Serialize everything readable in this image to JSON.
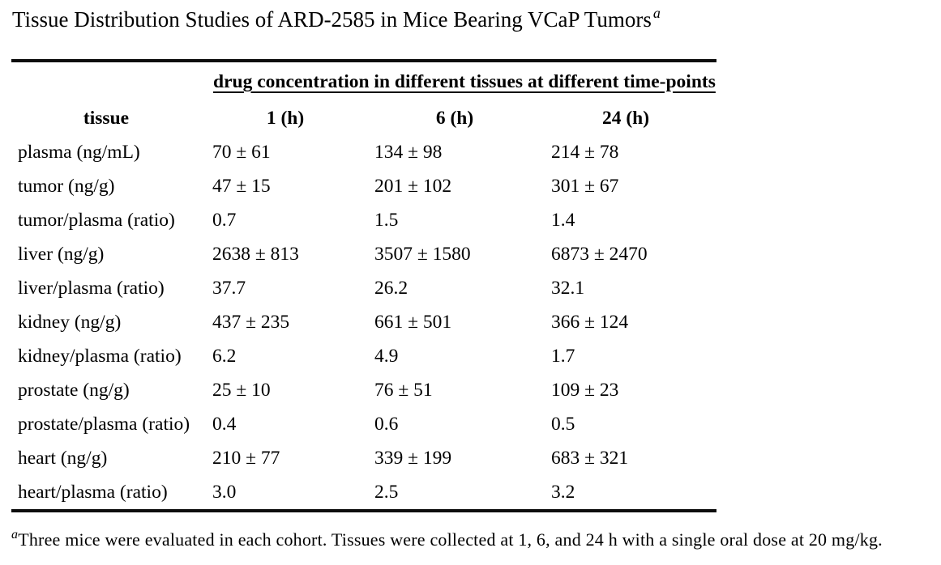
{
  "colors": {
    "text": "#000000",
    "background": "#ffffff",
    "rule": "#0d0d0d"
  },
  "title": {
    "text": "Tissue Distribution Studies of ARD-2585 in Mice Bearing VCaP Tumors",
    "superscript": "a"
  },
  "table": {
    "span_header": "drug concentration in different tissues at different time-points",
    "columns": {
      "tissue": "tissue",
      "t1": "1 (h)",
      "t6": "6 (h)",
      "t24": "24 (h)"
    },
    "rows": [
      {
        "tissue": "plasma (ng/mL)",
        "t1": "70 ± 61",
        "t6": "134 ± 98",
        "t24": "214 ± 78"
      },
      {
        "tissue": "tumor (ng/g)",
        "t1": "47 ± 15",
        "t6": "201 ± 102",
        "t24": "301 ± 67"
      },
      {
        "tissue": "tumor/plasma (ratio)",
        "t1": "0.7",
        "t6": "1.5",
        "t24": "1.4"
      },
      {
        "tissue": "liver (ng/g)",
        "t1": "2638 ± 813",
        "t6": "3507 ± 1580",
        "t24": "6873 ± 2470"
      },
      {
        "tissue": "liver/plasma (ratio)",
        "t1": "37.7",
        "t6": "26.2",
        "t24": "32.1"
      },
      {
        "tissue": "kidney (ng/g)",
        "t1": "437 ± 235",
        "t6": "661 ± 501",
        "t24": "366 ± 124"
      },
      {
        "tissue": "kidney/plasma (ratio)",
        "t1": "6.2",
        "t6": "4.9",
        "t24": "1.7"
      },
      {
        "tissue": "prostate (ng/g)",
        "t1": "25 ± 10",
        "t6": "76 ± 51",
        "t24": "109 ± 23"
      },
      {
        "tissue": "prostate/plasma (ratio)",
        "t1": "0.4",
        "t6": "0.6",
        "t24": "0.5"
      },
      {
        "tissue": "heart (ng/g)",
        "t1": "210 ± 77",
        "t6": "339 ± 199",
        "t24": "683 ± 321"
      },
      {
        "tissue": "heart/plasma (ratio)",
        "t1": "3.0",
        "t6": "2.5",
        "t24": "3.2"
      }
    ]
  },
  "footnote": {
    "marker": "a",
    "text": "Three mice were evaluated in each cohort. Tissues were collected at 1, 6, and 24 h with a single oral dose at 20 mg/kg."
  },
  "chart_data": {
    "type": "table",
    "title": "Tissue Distribution Studies of ARD-2585 in Mice Bearing VCaP Tumors",
    "time_points_h": [
      1,
      6,
      24
    ],
    "series": [
      {
        "name": "plasma (ng/mL)",
        "mean": [
          70,
          134,
          214
        ],
        "sd": [
          61,
          98,
          78
        ]
      },
      {
        "name": "tumor (ng/g)",
        "mean": [
          47,
          201,
          301
        ],
        "sd": [
          15,
          102,
          67
        ]
      },
      {
        "name": "tumor/plasma (ratio)",
        "mean": [
          0.7,
          1.5,
          1.4
        ]
      },
      {
        "name": "liver (ng/g)",
        "mean": [
          2638,
          3507,
          6873
        ],
        "sd": [
          813,
          1580,
          2470
        ]
      },
      {
        "name": "liver/plasma (ratio)",
        "mean": [
          37.7,
          26.2,
          32.1
        ]
      },
      {
        "name": "kidney (ng/g)",
        "mean": [
          437,
          661,
          366
        ],
        "sd": [
          235,
          501,
          124
        ]
      },
      {
        "name": "kidney/plasma (ratio)",
        "mean": [
          6.2,
          4.9,
          1.7
        ]
      },
      {
        "name": "prostate (ng/g)",
        "mean": [
          25,
          76,
          109
        ],
        "sd": [
          10,
          51,
          23
        ]
      },
      {
        "name": "prostate/plasma (ratio)",
        "mean": [
          0.4,
          0.6,
          0.5
        ]
      },
      {
        "name": "heart (ng/g)",
        "mean": [
          210,
          339,
          683
        ],
        "sd": [
          77,
          199,
          321
        ]
      },
      {
        "name": "heart/plasma (ratio)",
        "mean": [
          3.0,
          2.5,
          3.2
        ]
      }
    ]
  }
}
